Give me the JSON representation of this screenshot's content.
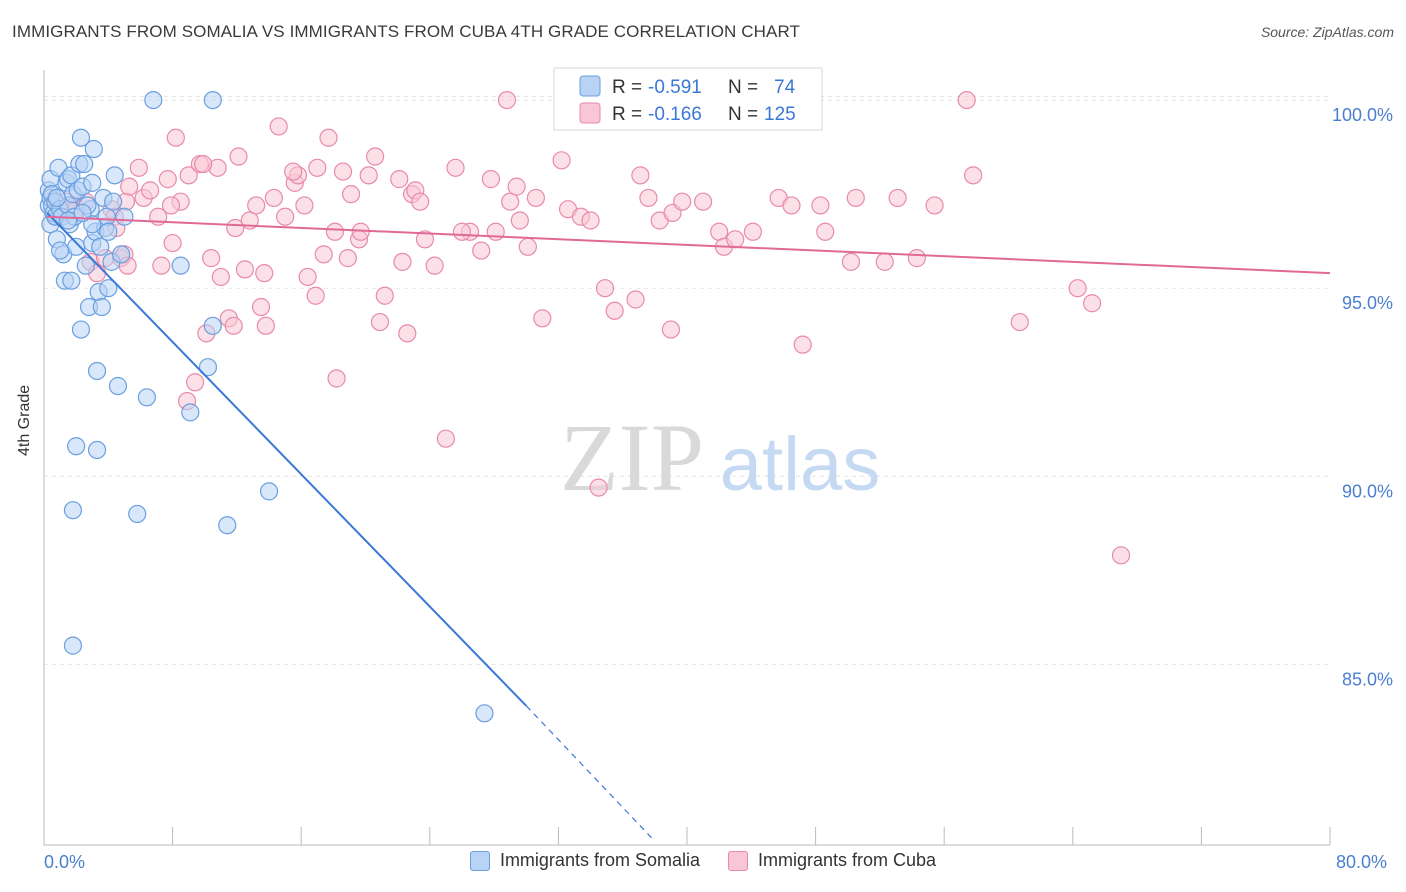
{
  "header": {
    "title": "IMMIGRANTS FROM SOMALIA VS IMMIGRANTS FROM CUBA 4TH GRADE CORRELATION CHART",
    "source": "Source: ZipAtlas.com"
  },
  "watermark": {
    "zip": "ZIP",
    "atlas": "atlas"
  },
  "colors": {
    "blue_fill": "#b8d3f4",
    "blue_stroke": "#6a9fe0",
    "blue_line": "#3a78d8",
    "pink_fill": "#f9c6d6",
    "pink_stroke": "#e88aa9",
    "pink_line": "#e06a95",
    "tick_label": "#4a7fd0",
    "grid": "#e4e4e4"
  },
  "legend_box": {
    "rows": [
      {
        "r_label": "R = ",
        "r_value": "-0.591",
        "n_label": "N = ",
        "n_value": "74"
      },
      {
        "r_label": "R = ",
        "r_value": "-0.166",
        "n_label": "N = ",
        "n_value": "125"
      }
    ]
  },
  "chart_data": {
    "type": "scatter",
    "title": "IMMIGRANTS FROM SOMALIA VS IMMIGRANTS FROM CUBA 4TH GRADE CORRELATION CHART",
    "xlabel": "",
    "ylabel": "4th Grade",
    "xlim": [
      0,
      80
    ],
    "ylim": [
      80.2,
      100.8
    ],
    "x_tick_labels": [
      "0.0%",
      "80.0%"
    ],
    "y_ticks": [
      85,
      90,
      95,
      100
    ],
    "y_tick_labels": [
      "85.0%",
      "90.0%",
      "95.0%",
      "100.0%"
    ],
    "grid": true,
    "legend_position": "bottom",
    "series": [
      {
        "name": "Immigrants from Somalia",
        "color": "#6a9fe0",
        "trend": {
          "x": [
            0.2,
            30.0
          ],
          "y": [
            97.0,
            83.9
          ],
          "dashed_to": [
            38.0,
            80.3
          ]
        },
        "points": [
          [
            0.3,
            97.2
          ],
          [
            0.3,
            97.6
          ],
          [
            0.4,
            96.7
          ],
          [
            0.4,
            97.9
          ],
          [
            0.4,
            97.4
          ],
          [
            0.5,
            97.2
          ],
          [
            0.5,
            97.5
          ],
          [
            0.6,
            97.0
          ],
          [
            0.7,
            97.3
          ],
          [
            0.7,
            96.9
          ],
          [
            0.8,
            96.3
          ],
          [
            0.9,
            98.2
          ],
          [
            1.0,
            97.1
          ],
          [
            1.1,
            96.9
          ],
          [
            1.2,
            95.9
          ],
          [
            1.3,
            95.2
          ],
          [
            1.4,
            97.8
          ],
          [
            1.5,
            97.9
          ],
          [
            1.5,
            97.2
          ],
          [
            1.6,
            96.7
          ],
          [
            1.7,
            95.2
          ],
          [
            1.7,
            98.0
          ],
          [
            1.8,
            97.5
          ],
          [
            1.9,
            96.9
          ],
          [
            2.0,
            96.1
          ],
          [
            2.1,
            97.6
          ],
          [
            2.2,
            98.3
          ],
          [
            2.3,
            99.0
          ],
          [
            2.3,
            93.9
          ],
          [
            2.4,
            97.7
          ],
          [
            2.5,
            98.3
          ],
          [
            2.6,
            95.6
          ],
          [
            2.8,
            94.5
          ],
          [
            2.9,
            97.1
          ],
          [
            3.0,
            96.2
          ],
          [
            3.0,
            97.8
          ],
          [
            3.1,
            98.7
          ],
          [
            3.2,
            96.5
          ],
          [
            3.3,
            92.8
          ],
          [
            3.4,
            94.9
          ],
          [
            3.5,
            96.1
          ],
          [
            3.6,
            94.5
          ],
          [
            3.7,
            97.4
          ],
          [
            3.8,
            96.6
          ],
          [
            3.9,
            96.9
          ],
          [
            4.0,
            96.5
          ],
          [
            4.0,
            95.0
          ],
          [
            4.2,
            95.7
          ],
          [
            4.4,
            98.0
          ],
          [
            4.6,
            92.4
          ],
          [
            4.8,
            95.9
          ],
          [
            5.0,
            96.9
          ],
          [
            2.0,
            90.8
          ],
          [
            1.8,
            89.1
          ],
          [
            1.8,
            85.5
          ],
          [
            3.3,
            90.7
          ],
          [
            5.8,
            89.0
          ],
          [
            6.4,
            92.1
          ],
          [
            6.8,
            100.0
          ],
          [
            8.5,
            95.6
          ],
          [
            10.5,
            100.0
          ],
          [
            10.5,
            94.0
          ],
          [
            10.2,
            92.9
          ],
          [
            9.1,
            91.7
          ],
          [
            11.4,
            88.7
          ],
          [
            14.0,
            89.6
          ],
          [
            27.4,
            83.7
          ],
          [
            1.0,
            96.0
          ],
          [
            2.7,
            97.2
          ],
          [
            4.3,
            97.3
          ],
          [
            3.0,
            96.7
          ],
          [
            0.8,
            97.4
          ],
          [
            1.5,
            96.8
          ],
          [
            2.4,
            97.0
          ]
        ]
      },
      {
        "name": "Immigrants from Cuba",
        "color": "#e88aa9",
        "trend": {
          "x": [
            0.2,
            80.0
          ],
          "y": [
            96.9,
            95.4
          ]
        },
        "points": [
          [
            0.8,
            96.9
          ],
          [
            1.4,
            97.3
          ],
          [
            1.9,
            97.2
          ],
          [
            2.0,
            97.1
          ],
          [
            2.6,
            97.3
          ],
          [
            2.9,
            95.7
          ],
          [
            3.3,
            95.4
          ],
          [
            3.8,
            95.8
          ],
          [
            4.2,
            97.1
          ],
          [
            4.4,
            96.9
          ],
          [
            4.8,
            95.8
          ],
          [
            5.0,
            95.9
          ],
          [
            5.2,
            95.6
          ],
          [
            4.5,
            96.6
          ],
          [
            5.1,
            97.3
          ],
          [
            5.3,
            97.7
          ],
          [
            5.9,
            98.2
          ],
          [
            6.2,
            97.4
          ],
          [
            6.6,
            97.6
          ],
          [
            7.1,
            96.9
          ],
          [
            7.3,
            95.6
          ],
          [
            7.7,
            97.9
          ],
          [
            8.0,
            96.2
          ],
          [
            8.2,
            99.0
          ],
          [
            8.5,
            97.3
          ],
          [
            8.9,
            92.0
          ],
          [
            9.0,
            98.0
          ],
          [
            9.4,
            92.5
          ],
          [
            9.7,
            98.3
          ],
          [
            10.1,
            93.8
          ],
          [
            10.4,
            95.8
          ],
          [
            10.8,
            98.2
          ],
          [
            11.0,
            95.3
          ],
          [
            11.5,
            94.2
          ],
          [
            11.8,
            94.0
          ],
          [
            11.9,
            96.6
          ],
          [
            12.1,
            98.5
          ],
          [
            12.8,
            96.8
          ],
          [
            13.2,
            97.2
          ],
          [
            13.5,
            94.5
          ],
          [
            13.7,
            95.4
          ],
          [
            13.8,
            94.0
          ],
          [
            14.3,
            97.4
          ],
          [
            14.6,
            99.3
          ],
          [
            15.0,
            96.9
          ],
          [
            15.6,
            97.8
          ],
          [
            15.8,
            98.0
          ],
          [
            16.2,
            97.2
          ],
          [
            16.4,
            95.3
          ],
          [
            16.9,
            94.8
          ],
          [
            17.0,
            98.2
          ],
          [
            17.4,
            95.9
          ],
          [
            17.7,
            99.0
          ],
          [
            18.1,
            96.5
          ],
          [
            18.2,
            92.6
          ],
          [
            18.6,
            98.1
          ],
          [
            18.9,
            95.8
          ],
          [
            19.1,
            97.5
          ],
          [
            19.6,
            96.3
          ],
          [
            19.7,
            96.5
          ],
          [
            20.2,
            98.0
          ],
          [
            20.6,
            98.5
          ],
          [
            20.9,
            94.1
          ],
          [
            21.2,
            94.8
          ],
          [
            22.1,
            97.9
          ],
          [
            22.6,
            93.8
          ],
          [
            22.9,
            97.5
          ],
          [
            23.1,
            97.6
          ],
          [
            23.4,
            97.3
          ],
          [
            23.7,
            96.3
          ],
          [
            24.3,
            95.6
          ],
          [
            25.0,
            91.0
          ],
          [
            25.6,
            98.2
          ],
          [
            26.5,
            96.5
          ],
          [
            27.2,
            96.0
          ],
          [
            27.8,
            97.9
          ],
          [
            28.1,
            96.5
          ],
          [
            28.8,
            100.0
          ],
          [
            29.0,
            97.3
          ],
          [
            29.4,
            97.7
          ],
          [
            29.6,
            96.8
          ],
          [
            30.1,
            96.1
          ],
          [
            31.0,
            94.2
          ],
          [
            32.2,
            98.4
          ],
          [
            32.6,
            97.1
          ],
          [
            33.4,
            96.9
          ],
          [
            34.0,
            96.8
          ],
          [
            34.5,
            89.7
          ],
          [
            34.9,
            95.0
          ],
          [
            35.5,
            94.4
          ],
          [
            37.1,
            98.0
          ],
          [
            37.6,
            97.4
          ],
          [
            38.3,
            96.8
          ],
          [
            39.0,
            93.9
          ],
          [
            39.1,
            97.0
          ],
          [
            39.7,
            97.3
          ],
          [
            41.0,
            97.3
          ],
          [
            42.0,
            96.5
          ],
          [
            42.3,
            96.1
          ],
          [
            44.1,
            96.5
          ],
          [
            45.7,
            97.4
          ],
          [
            46.5,
            97.2
          ],
          [
            47.2,
            93.5
          ],
          [
            48.3,
            97.2
          ],
          [
            48.6,
            96.5
          ],
          [
            50.2,
            95.7
          ],
          [
            50.5,
            97.4
          ],
          [
            52.3,
            95.7
          ],
          [
            53.1,
            97.4
          ],
          [
            54.3,
            95.8
          ],
          [
            55.4,
            97.2
          ],
          [
            57.4,
            100.0
          ],
          [
            57.8,
            98.0
          ],
          [
            60.7,
            94.1
          ],
          [
            64.3,
            95.0
          ],
          [
            65.2,
            94.6
          ],
          [
            67.0,
            87.9
          ],
          [
            7.9,
            97.2
          ],
          [
            9.9,
            98.3
          ],
          [
            12.5,
            95.5
          ],
          [
            15.5,
            98.1
          ],
          [
            22.3,
            95.7
          ],
          [
            26.0,
            96.5
          ],
          [
            30.6,
            97.4
          ],
          [
            36.8,
            94.7
          ],
          [
            43.0,
            96.3
          ]
        ]
      }
    ]
  },
  "bottom_legend": {
    "items": [
      {
        "label": "Immigrants from Somalia"
      },
      {
        "label": "Immigrants from Cuba"
      }
    ]
  }
}
